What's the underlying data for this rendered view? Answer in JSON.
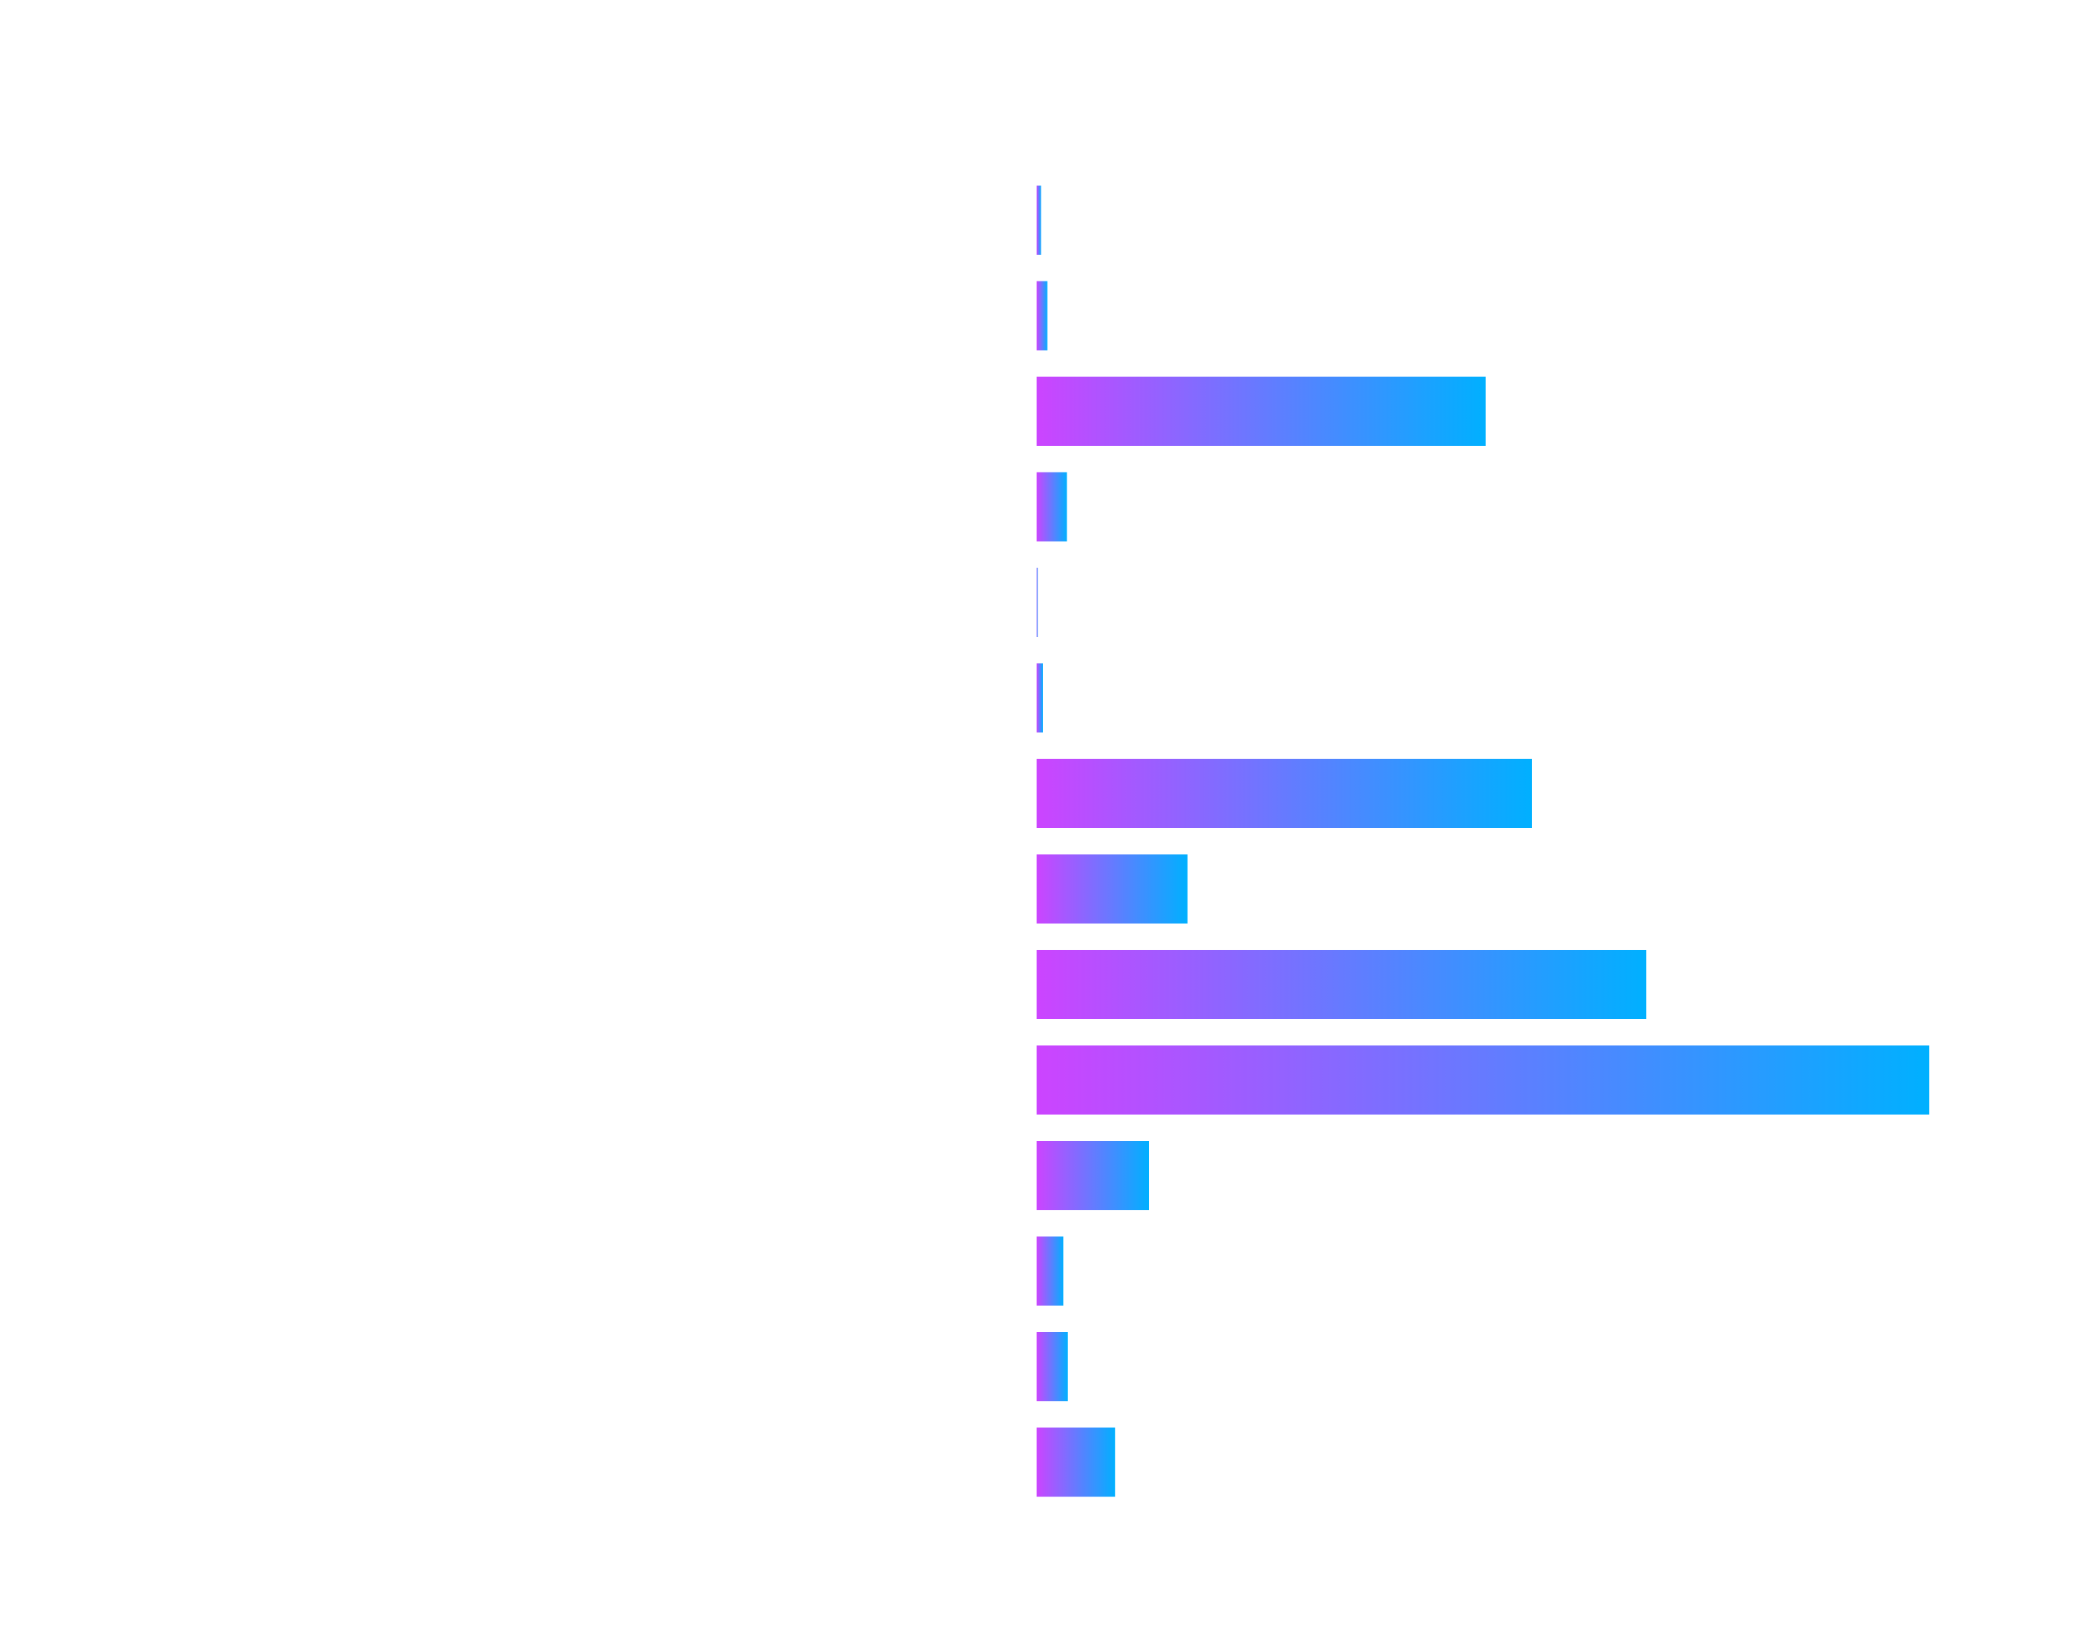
{
  "chart_data": {
    "type": "bar",
    "orientation": "horizontal",
    "title": "",
    "xlabel": "",
    "ylabel": "",
    "categories": [
      "",
      "",
      "",
      "",
      "",
      "",
      "",
      "",
      "",
      "",
      "",
      "",
      "",
      ""
    ],
    "values": [
      0.5,
      1.2,
      50.3,
      3.4,
      0.1,
      0.7,
      55.5,
      16.9,
      68.3,
      100,
      12.6,
      3.0,
      3.5,
      8.8
    ],
    "xlim": [
      0,
      100
    ],
    "grid": false,
    "legend": "none",
    "colors": {
      "gradient_start": "#cc44ff",
      "gradient_end": "#00b0ff"
    }
  }
}
